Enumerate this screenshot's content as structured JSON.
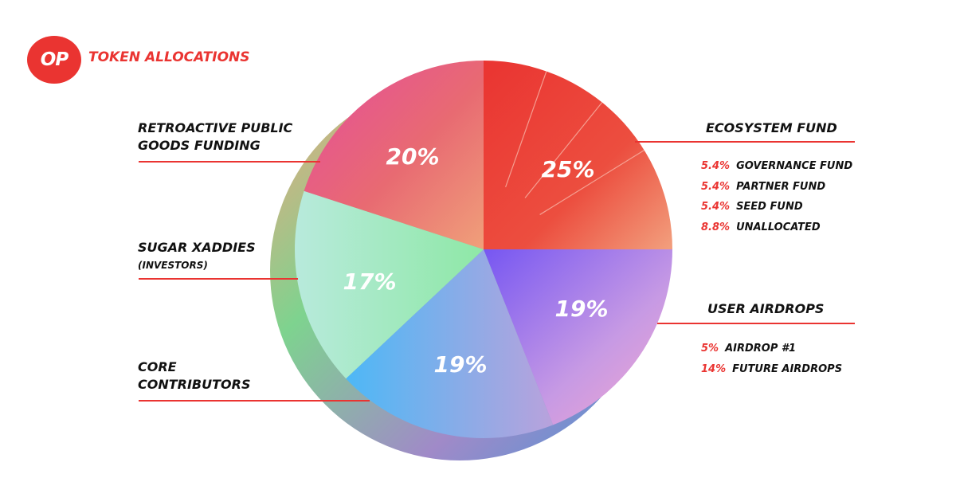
{
  "header": {
    "logo": "OP",
    "title": "TOKEN ALLOCATIONS"
  },
  "colors": {
    "brand": "#ea3431",
    "ecosystem": "#ea3431",
    "retro": "#e6577f",
    "investors": "#9ee8c0",
    "core": "#64a8ee",
    "airdrops": "#a98cec"
  },
  "chart_data": {
    "type": "pie",
    "slices": [
      {
        "label": "ECOSYSTEM FUND",
        "value": 25,
        "pct_label": "25%"
      },
      {
        "label": "USER AIRDROPS",
        "value": 19,
        "pct_label": "19%"
      },
      {
        "label": "CORE CONTRIBUTORS",
        "value": 19,
        "pct_label": "19%"
      },
      {
        "label": "SUGAR XADDIES",
        "sublabel": "(INVESTORS)",
        "value": 17,
        "pct_label": "17%"
      },
      {
        "label": "RETROACTIVE PUBLIC GOODS FUNDING",
        "value": 20,
        "pct_label": "20%"
      }
    ],
    "breakdowns": {
      "ecosystem": [
        {
          "pct": "5.4%",
          "label": "GOVERNANCE FUND"
        },
        {
          "pct": "5.4%",
          "label": "PARTNER FUND"
        },
        {
          "pct": "5.4%",
          "label": "SEED FUND"
        },
        {
          "pct": "8.8%",
          "label": "UNALLOCATED"
        }
      ],
      "airdrops": [
        {
          "pct": "5%",
          "label": "AIRDROP #1"
        },
        {
          "pct": "14%",
          "label": "FUTURE AIRDROPS"
        }
      ]
    }
  },
  "labels": {
    "retro_line1": "RETROACTIVE PUBLIC",
    "retro_line2": "GOODS FUNDING",
    "investors_line1": "SUGAR XADDIES",
    "investors_line2": "(INVESTORS)",
    "core_line1": "CORE",
    "core_line2": "CONTRIBUTORS",
    "ecosystem": "ECOSYSTEM FUND",
    "airdrops": "USER AIRDROPS"
  }
}
